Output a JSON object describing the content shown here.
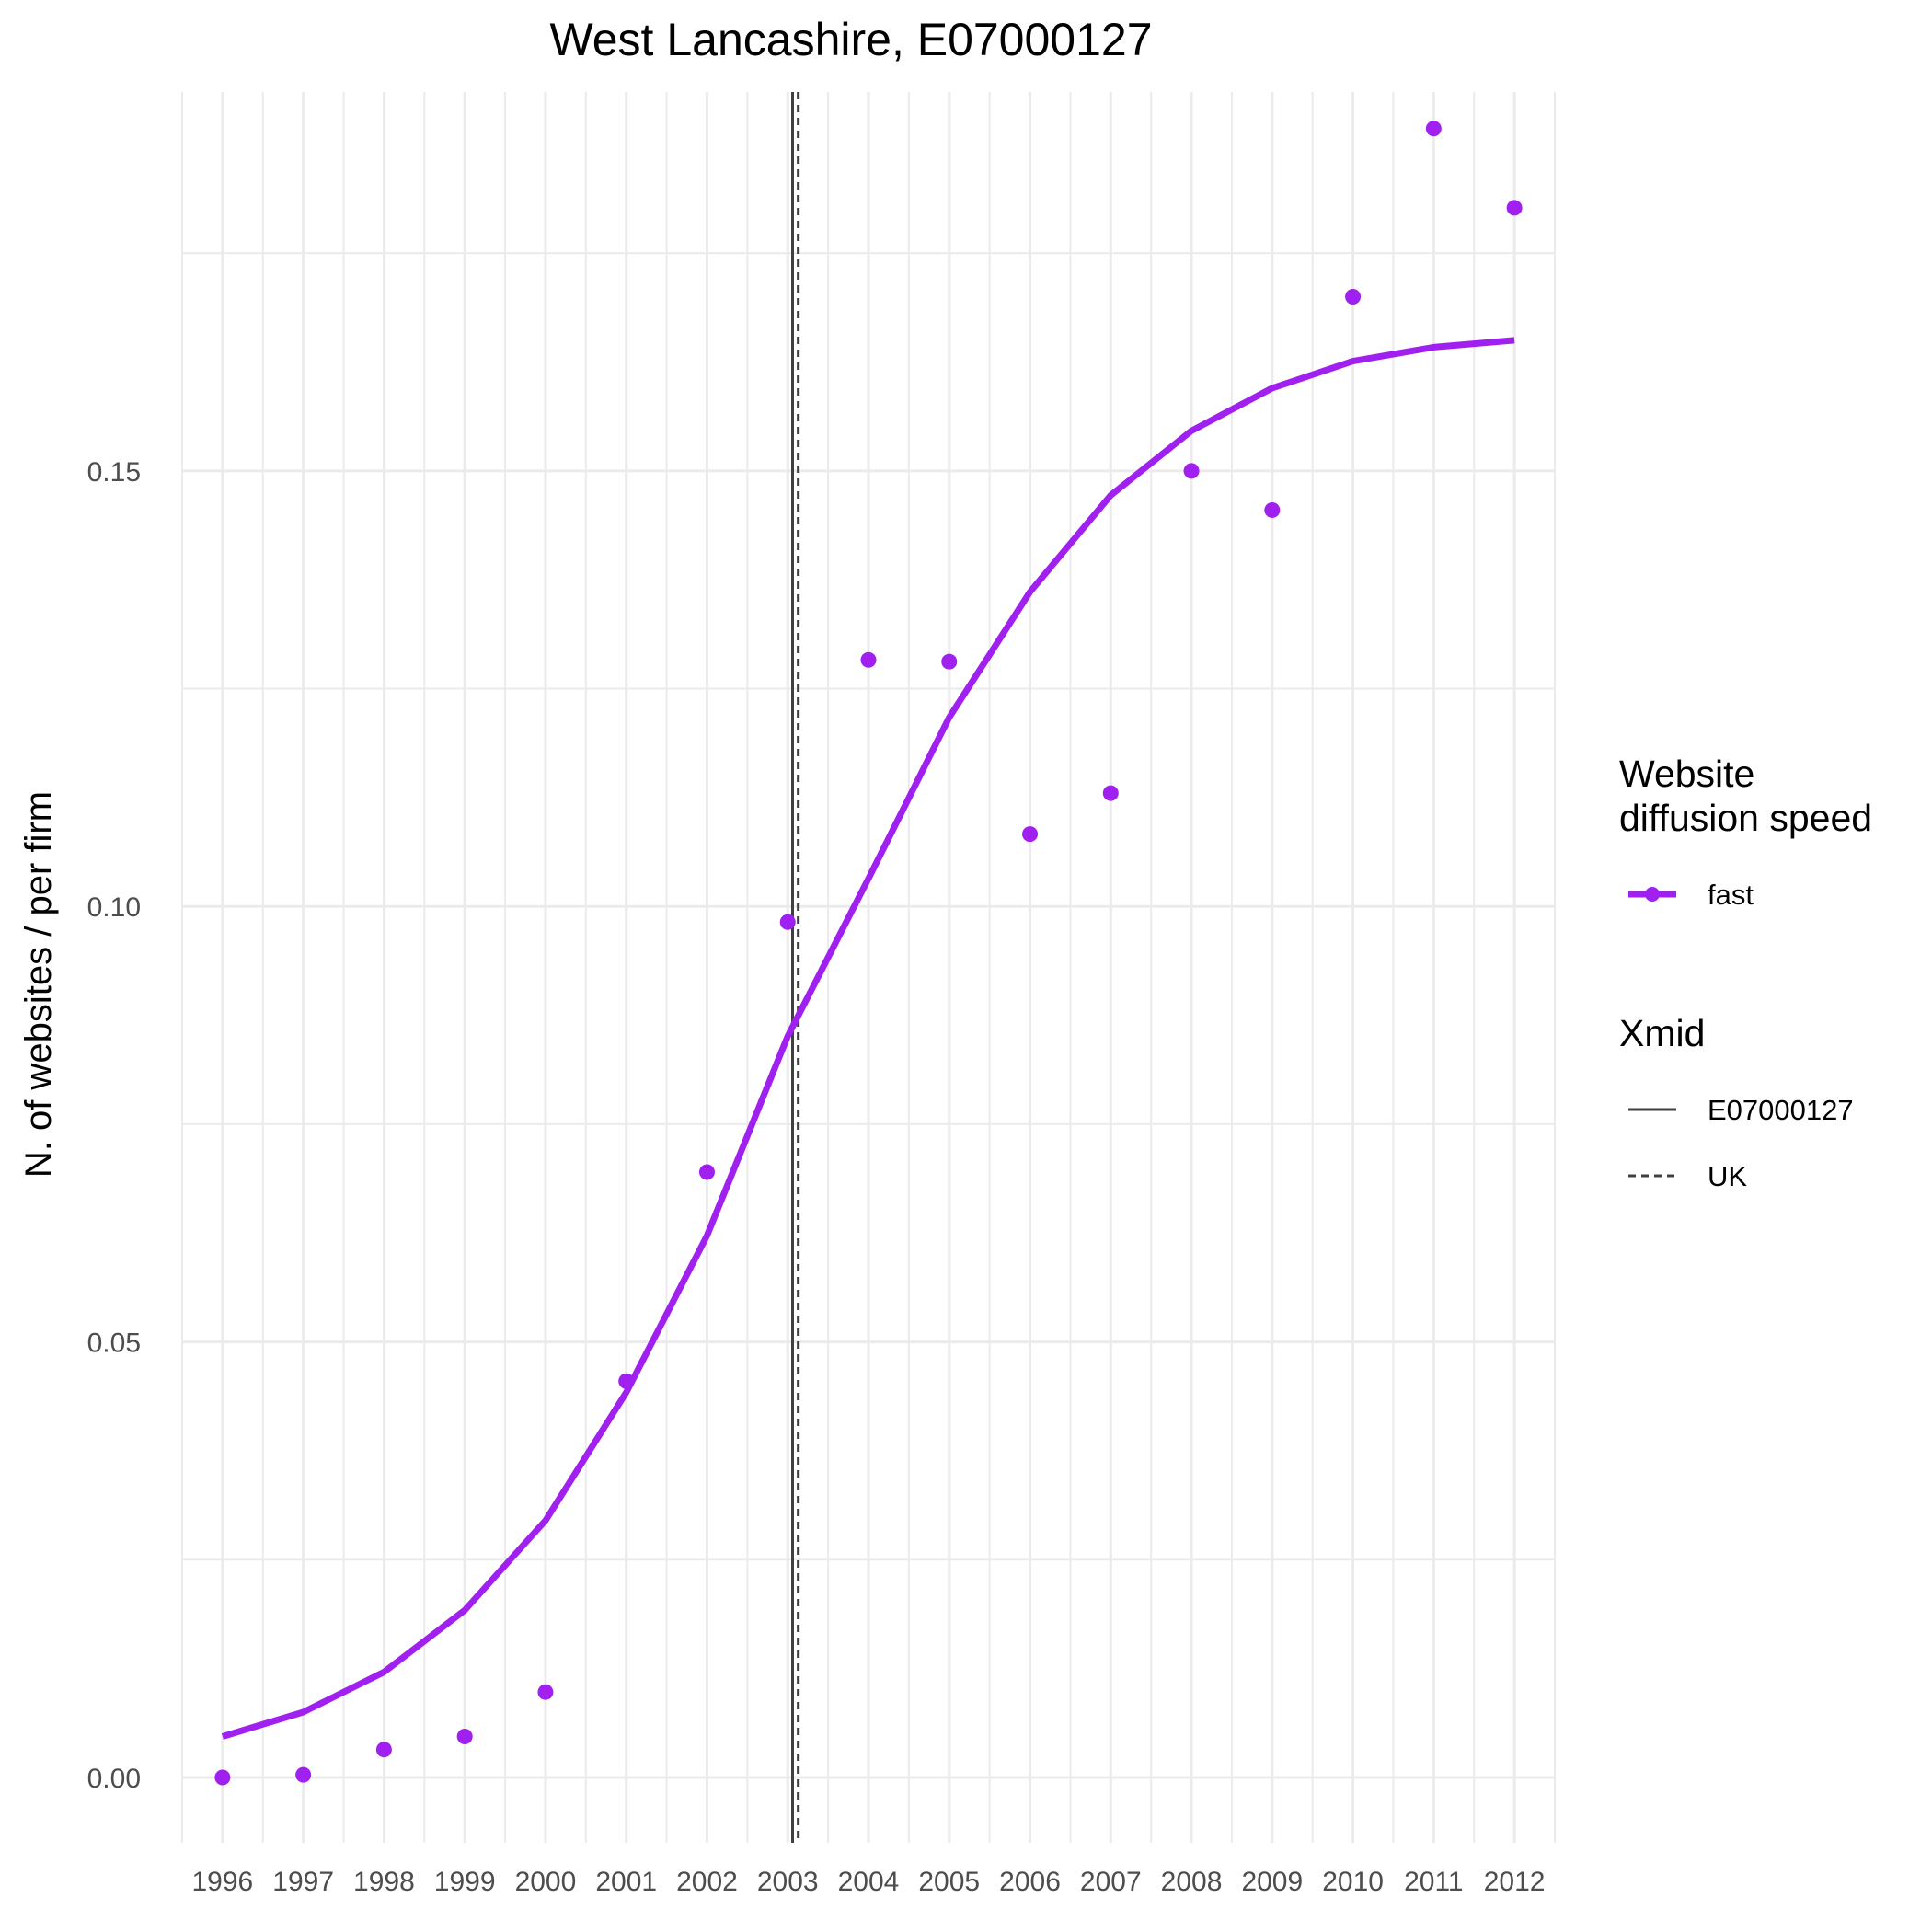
{
  "chart_data": {
    "type": "line",
    "title": "West Lancashire, E07000127",
    "xlabel": "",
    "ylabel": "N. of websites / per firm",
    "x": [
      "1996",
      "1997",
      "1998",
      "1999",
      "2000",
      "2001",
      "2002",
      "2003",
      "2004",
      "2005",
      "2006",
      "2007",
      "2008",
      "2009",
      "2010",
      "2011",
      "2012"
    ],
    "xlim": [
      1995.5,
      2012.5
    ],
    "ylim": [
      -0.0075,
      0.1935
    ],
    "y_ticks": [
      0.0,
      0.05,
      0.1,
      0.15
    ],
    "y_tick_labels": [
      "0.00",
      "0.05",
      "0.10",
      "0.15"
    ],
    "grid": true,
    "series": [
      {
        "name": "fast",
        "type": "line",
        "color": "#A020F0",
        "values": [
          0.0047,
          0.0075,
          0.0121,
          0.0192,
          0.0295,
          0.0442,
          0.0622,
          0.0851,
          0.1032,
          0.1217,
          0.1361,
          0.1472,
          0.1546,
          0.1595,
          0.1626,
          0.1642,
          0.165
        ]
      },
      {
        "name": "fast",
        "type": "scatter",
        "color": "#A020F0",
        "values": [
          0.0,
          0.0003,
          0.0032,
          0.0047,
          0.0098,
          0.0455,
          0.0695,
          0.0982,
          0.1283,
          0.1281,
          0.1083,
          0.113,
          0.15,
          0.1455,
          0.17,
          0.1893,
          0.1802
        ]
      }
    ],
    "vlines": [
      {
        "name": "E07000127",
        "x": 2003.06,
        "style": "solid",
        "color": "#404040"
      },
      {
        "name": "UK",
        "x": 2003.13,
        "style": "dashed",
        "color": "#404040"
      }
    ],
    "legend": {
      "position": "right",
      "groups": [
        {
          "title": "Website\ndiffusion speed",
          "entries": [
            {
              "label": "fast",
              "style": "line-point",
              "color": "#A020F0"
            }
          ]
        },
        {
          "title": "Xmid",
          "entries": [
            {
              "label": "E07000127",
              "style": "solid",
              "color": "#404040"
            },
            {
              "label": "UK",
              "style": "dashed",
              "color": "#404040"
            }
          ]
        }
      ]
    }
  }
}
